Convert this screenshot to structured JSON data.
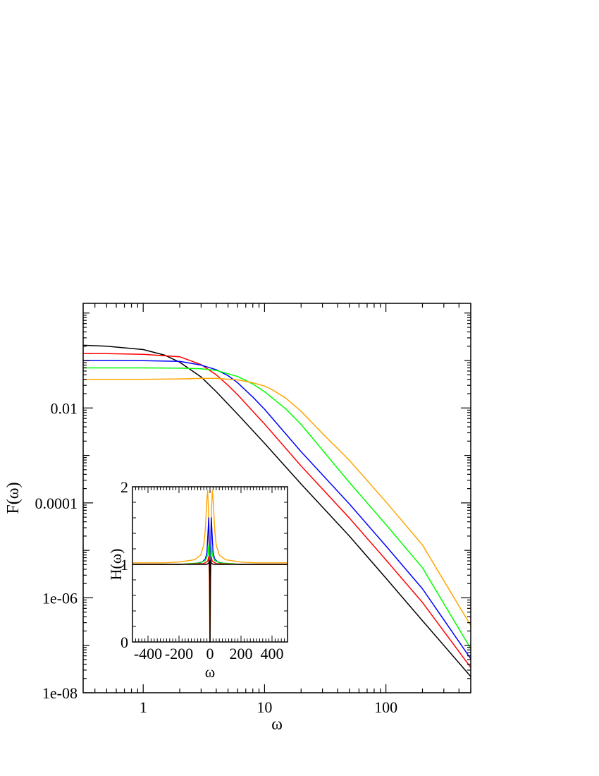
{
  "chart_data": [
    {
      "type": "line",
      "title": "",
      "xlabel": "ω",
      "ylabel": "F(ω)",
      "xscale": "log",
      "yscale": "log",
      "xlim": [
        0.32,
        500
      ],
      "ylim": [
        1e-08,
        1.6
      ],
      "xticks": [
        {
          "value": 1,
          "label": "1"
        },
        {
          "value": 10,
          "label": "10"
        },
        {
          "value": 100,
          "label": "100"
        }
      ],
      "yticks": [
        {
          "value": 1e-08,
          "label": "1e-08"
        },
        {
          "value": 1e-06,
          "label": "1e-06"
        },
        {
          "value": 0.0001,
          "label": "0.0001"
        },
        {
          "value": 0.01,
          "label": "0.01"
        }
      ],
      "grid": false,
      "legend": "none",
      "series": [
        {
          "color": "#000000",
          "x": [
            0.32,
            0.5,
            1,
            1.5,
            2,
            3,
            4,
            6,
            10,
            20,
            50,
            100,
            200,
            500
          ],
          "y": [
            0.21,
            0.2,
            0.17,
            0.13,
            0.092,
            0.045,
            0.022,
            0.0074,
            0.0018,
            0.00025,
            2e-05,
            2.6e-06,
            3.3e-07,
            2.2e-08
          ]
        },
        {
          "color": "#ff0000",
          "x": [
            0.32,
            0.5,
            1,
            2,
            3,
            4,
            5,
            6,
            8,
            10,
            20,
            50,
            100,
            200,
            500
          ],
          "y": [
            0.14,
            0.14,
            0.135,
            0.12,
            0.082,
            0.05,
            0.03,
            0.019,
            0.0085,
            0.0046,
            0.0006,
            4.8e-05,
            6.3e-06,
            8e-07,
            3.4e-08
          ]
        },
        {
          "color": "#0000ff",
          "x": [
            0.32,
            0.5,
            1,
            2,
            3,
            4,
            5,
            6,
            8,
            10,
            20,
            50,
            100,
            200,
            500
          ],
          "y": [
            0.1,
            0.1,
            0.099,
            0.096,
            0.08,
            0.064,
            0.048,
            0.034,
            0.017,
            0.0094,
            0.0012,
            9.5e-05,
            1.24e-05,
            1.55e-06,
            5.2e-08
          ]
        },
        {
          "color": "#00ff00",
          "x": [
            0.32,
            0.5,
            1,
            2,
            3,
            4,
            6,
            8,
            10,
            15,
            20,
            50,
            100,
            200,
            500
          ],
          "y": [
            0.07,
            0.07,
            0.07,
            0.069,
            0.067,
            0.062,
            0.046,
            0.032,
            0.022,
            0.0095,
            0.0045,
            0.00027,
            3.5e-05,
            4.3e-06,
            8.5e-08
          ]
        },
        {
          "color": "#ffa500",
          "x": [
            0.32,
            0.5,
            1,
            2,
            3,
            4,
            6,
            8,
            10,
            12,
            15,
            20,
            30,
            50,
            100,
            200,
            500
          ],
          "y": [
            0.04,
            0.04,
            0.04,
            0.041,
            0.042,
            0.042,
            0.039,
            0.034,
            0.029,
            0.023,
            0.016,
            0.0085,
            0.0029,
            0.00079,
            0.000105,
            1.3e-05,
            2.6e-07
          ]
        }
      ]
    },
    {
      "type": "line",
      "title": "",
      "xlabel": "ω",
      "ylabel": "H(ω)",
      "xlim": [
        -500,
        500
      ],
      "ylim": [
        0,
        2
      ],
      "xticks": [
        {
          "value": -400,
          "label": "-400"
        },
        {
          "value": -200,
          "label": "-200"
        },
        {
          "value": 0,
          "label": "0"
        },
        {
          "value": 200,
          "label": "200"
        },
        {
          "value": 400,
          "label": "400"
        }
      ],
      "yticks": [
        {
          "value": 0,
          "label": "0"
        },
        {
          "value": 1,
          "label": "1"
        },
        {
          "value": 2,
          "label": "2"
        }
      ],
      "grid": false,
      "legend": "none",
      "series": [
        {
          "color": "#ffa500",
          "x": [
            -500,
            -300,
            -200,
            -100,
            -60,
            -40,
            -30,
            -20,
            -15,
            -10,
            -5,
            -2,
            0,
            2,
            5,
            10,
            15,
            20,
            30,
            40,
            60,
            100,
            200,
            300,
            500
          ],
          "y": [
            1.02,
            1.02,
            1.03,
            1.06,
            1.12,
            1.25,
            1.45,
            1.85,
            1.95,
            1.7,
            0.9,
            0.2,
            0.0,
            0.2,
            0.9,
            1.7,
            1.95,
            1.85,
            1.45,
            1.25,
            1.12,
            1.06,
            1.03,
            1.02,
            1.02
          ]
        },
        {
          "color": "#0000ff",
          "x": [
            -500,
            -200,
            -100,
            -50,
            -30,
            -20,
            -12,
            -8,
            -4,
            -1,
            0,
            1,
            4,
            8,
            12,
            20,
            30,
            50,
            100,
            200,
            500
          ],
          "y": [
            1.0,
            1.0,
            1.01,
            1.03,
            1.07,
            1.15,
            1.45,
            1.6,
            1.2,
            0.3,
            0.0,
            0.3,
            1.2,
            1.6,
            1.45,
            1.15,
            1.07,
            1.03,
            1.01,
            1.0,
            1.0
          ]
        },
        {
          "color": "#00ff00",
          "x": [
            -500,
            -200,
            -60,
            -30,
            -15,
            -8,
            -4,
            -1,
            0,
            1,
            4,
            8,
            15,
            30,
            60,
            200,
            500
          ],
          "y": [
            1.0,
            1.0,
            1.02,
            1.05,
            1.12,
            1.25,
            0.9,
            0.2,
            0.0,
            0.2,
            0.9,
            1.25,
            1.12,
            1.05,
            1.02,
            1.0,
            1.0
          ]
        },
        {
          "color": "#ff0000",
          "x": [
            -500,
            -200,
            -40,
            -15,
            -8,
            -4,
            -1,
            0,
            1,
            4,
            8,
            15,
            40,
            200,
            500
          ],
          "y": [
            1.0,
            1.0,
            1.01,
            1.04,
            1.1,
            0.9,
            0.3,
            0.0,
            0.3,
            0.9,
            1.1,
            1.04,
            1.01,
            1.0,
            1.0
          ]
        },
        {
          "color": "#000000",
          "x": [
            -500,
            -200,
            -20,
            -8,
            -4,
            -1,
            0,
            1,
            4,
            8,
            20,
            200,
            500
          ],
          "y": [
            1.0,
            1.0,
            1.0,
            1.02,
            1.05,
            0.8,
            0.0,
            0.8,
            1.05,
            1.02,
            1.0,
            1.0,
            1.0
          ]
        }
      ]
    }
  ]
}
